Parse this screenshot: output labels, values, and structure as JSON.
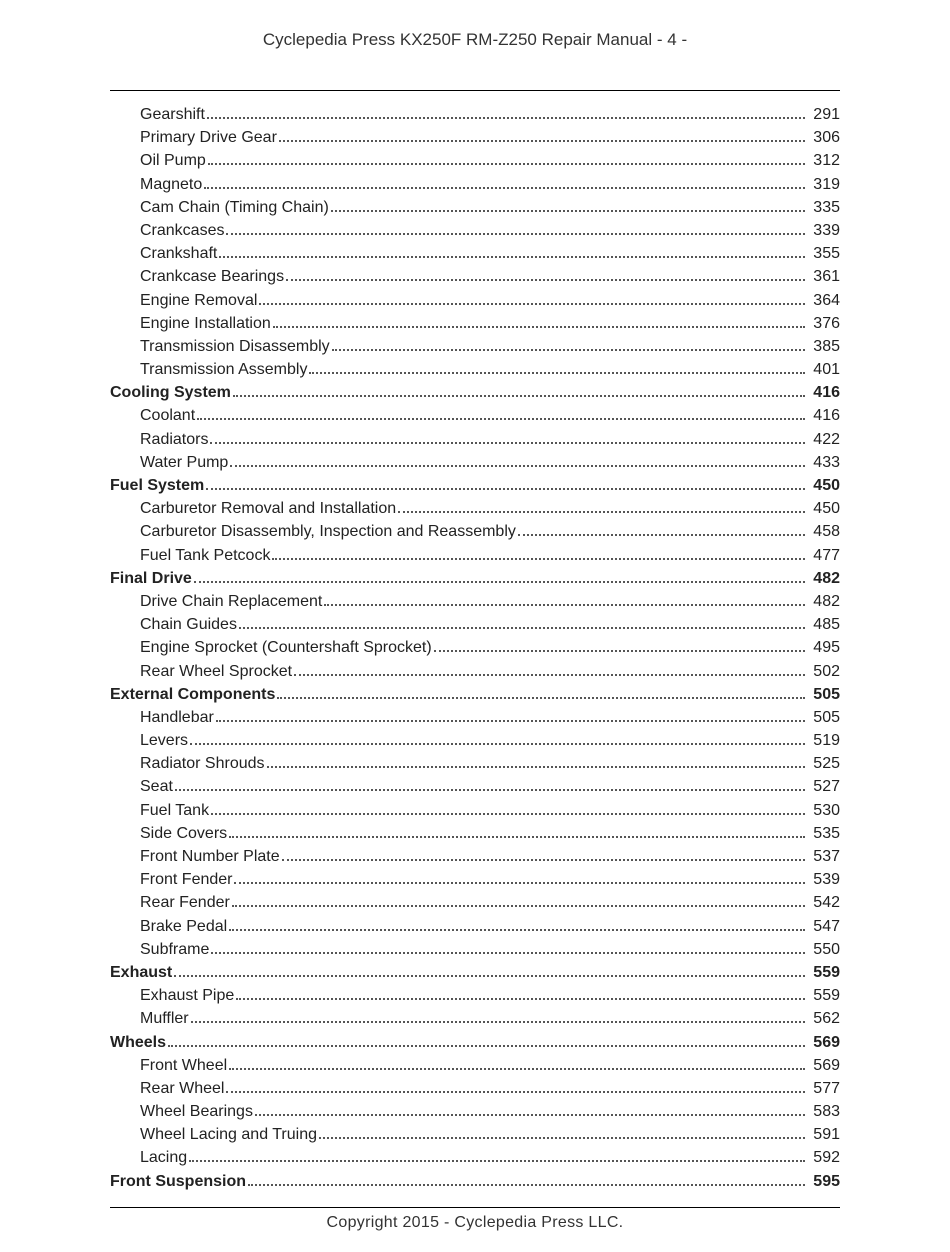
{
  "header": "Cyclepedia Press KX250F RM-Z250 Repair Manual - 4 -",
  "footer": "Copyright 2015 - Cyclepedia Press LLC.",
  "watermark": "",
  "toc": [
    {
      "label": "Gearshift",
      "page": "291",
      "level": "sub"
    },
    {
      "label": "Primary Drive Gear",
      "page": "306",
      "level": "sub"
    },
    {
      "label": "Oil Pump",
      "page": "312",
      "level": "sub"
    },
    {
      "label": "Magneto",
      "page": "319",
      "level": "sub"
    },
    {
      "label": "Cam Chain (Timing Chain)",
      "page": "335",
      "level": "sub"
    },
    {
      "label": "Crankcases",
      "page": "339",
      "level": "sub"
    },
    {
      "label": "Crankshaft",
      "page": "355",
      "level": "sub"
    },
    {
      "label": "Crankcase Bearings",
      "page": "361",
      "level": "sub"
    },
    {
      "label": "Engine Removal",
      "page": "364",
      "level": "sub"
    },
    {
      "label": "Engine Installation",
      "page": "376",
      "level": "sub"
    },
    {
      "label": "Transmission Disassembly",
      "page": "385",
      "level": "sub"
    },
    {
      "label": "Transmission Assembly",
      "page": "401",
      "level": "sub"
    },
    {
      "label": "Cooling System",
      "page": "416",
      "level": "section"
    },
    {
      "label": "Coolant",
      "page": "416",
      "level": "sub"
    },
    {
      "label": "Radiators",
      "page": "422",
      "level": "sub"
    },
    {
      "label": "Water Pump",
      "page": "433",
      "level": "sub"
    },
    {
      "label": "Fuel System",
      "page": "450",
      "level": "section"
    },
    {
      "label": "Carburetor Removal and Installation",
      "page": "450",
      "level": "sub"
    },
    {
      "label": "Carburetor Disassembly, Inspection and Reassembly",
      "page": "458",
      "level": "sub"
    },
    {
      "label": "Fuel Tank Petcock",
      "page": "477",
      "level": "sub"
    },
    {
      "label": "Final Drive",
      "page": "482",
      "level": "section"
    },
    {
      "label": "Drive Chain Replacement",
      "page": "482",
      "level": "sub"
    },
    {
      "label": "Chain Guides",
      "page": "485",
      "level": "sub"
    },
    {
      "label": "Engine Sprocket (Countershaft Sprocket)",
      "page": "495",
      "level": "sub"
    },
    {
      "label": "Rear Wheel Sprocket",
      "page": "502",
      "level": "sub"
    },
    {
      "label": "External Components",
      "page": "505",
      "level": "section"
    },
    {
      "label": "Handlebar",
      "page": "505",
      "level": "sub"
    },
    {
      "label": "Levers",
      "page": "519",
      "level": "sub"
    },
    {
      "label": "Radiator Shrouds",
      "page": "525",
      "level": "sub"
    },
    {
      "label": "Seat",
      "page": "527",
      "level": "sub"
    },
    {
      "label": "Fuel Tank",
      "page": "530",
      "level": "sub"
    },
    {
      "label": "Side Covers",
      "page": "535",
      "level": "sub"
    },
    {
      "label": "Front Number Plate",
      "page": "537",
      "level": "sub"
    },
    {
      "label": "Front Fender",
      "page": "539",
      "level": "sub"
    },
    {
      "label": "Rear Fender",
      "page": "542",
      "level": "sub"
    },
    {
      "label": "Brake Pedal",
      "page": "547",
      "level": "sub"
    },
    {
      "label": "Subframe",
      "page": "550",
      "level": "sub"
    },
    {
      "label": "Exhaust",
      "page": "559",
      "level": "section"
    },
    {
      "label": "Exhaust Pipe",
      "page": "559",
      "level": "sub"
    },
    {
      "label": "Muffler",
      "page": "562",
      "level": "sub"
    },
    {
      "label": "Wheels",
      "page": "569",
      "level": "section"
    },
    {
      "label": "Front Wheel",
      "page": "569",
      "level": "sub"
    },
    {
      "label": "Rear Wheel",
      "page": "577",
      "level": "sub"
    },
    {
      "label": "Wheel Bearings",
      "page": "583",
      "level": "sub"
    },
    {
      "label": "Wheel Lacing and Truing",
      "page": "591",
      "level": "sub"
    },
    {
      "label": "Lacing",
      "page": "592",
      "level": "sub"
    },
    {
      "label": "Front Suspension",
      "page": "595",
      "level": "section"
    }
  ]
}
